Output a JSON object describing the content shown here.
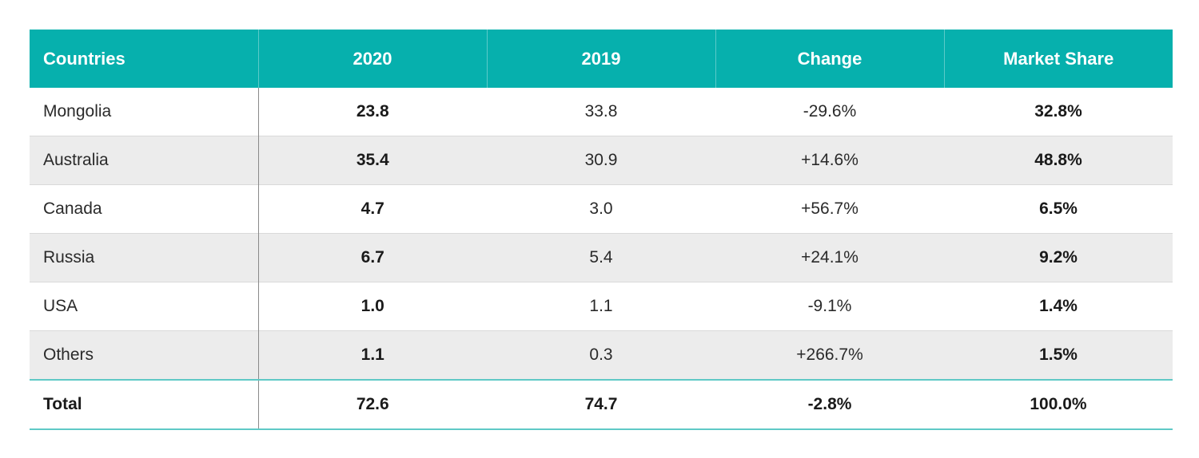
{
  "chart_data": {
    "type": "table",
    "columns": [
      "Countries",
      "2020",
      "2019",
      "Change",
      "Market Share"
    ],
    "rows": [
      {
        "country": "Mongolia",
        "y2020": "23.8",
        "y2019": "33.8",
        "change": "-29.6%",
        "share": "32.8%"
      },
      {
        "country": "Australia",
        "y2020": "35.4",
        "y2019": "30.9",
        "change": "+14.6%",
        "share": "48.8%"
      },
      {
        "country": "Canada",
        "y2020": "4.7",
        "y2019": "3.0",
        "change": "+56.7%",
        "share": "6.5%"
      },
      {
        "country": "Russia",
        "y2020": "6.7",
        "y2019": "5.4",
        "change": "+24.1%",
        "share": "9.2%"
      },
      {
        "country": "USA",
        "y2020": "1.0",
        "y2019": "1.1",
        "change": "-9.1%",
        "share": "1.4%"
      },
      {
        "country": "Others",
        "y2020": "1.1",
        "y2019": "0.3",
        "change": "+266.7%",
        "share": "1.5%"
      }
    ],
    "total": {
      "country": "Total",
      "y2020": "72.6",
      "y2019": "74.7",
      "change": "-2.8%",
      "share": "100.0%"
    },
    "colors": {
      "header": "#06b0ad",
      "alt_row": "#ececec",
      "rule": "#5fc9c6"
    }
  }
}
